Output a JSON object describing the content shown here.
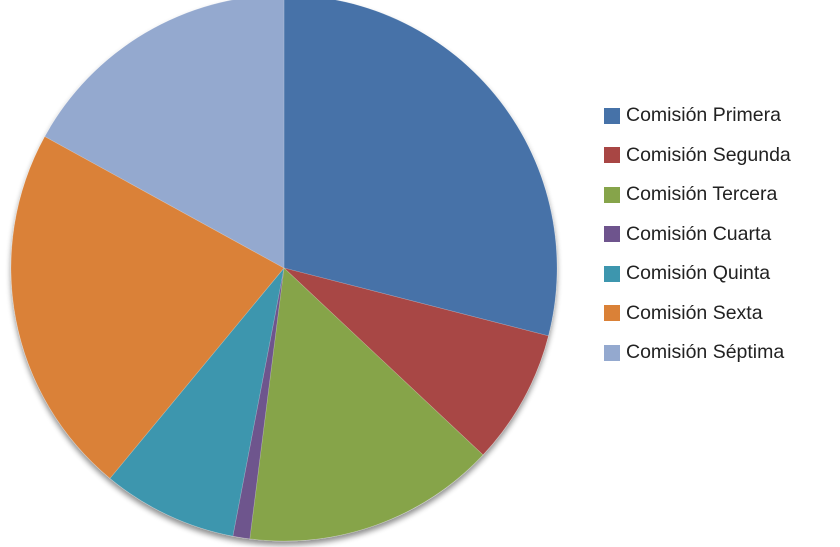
{
  "chart_data": {
    "type": "pie",
    "title": "",
    "legend_position": "right",
    "slices": [
      {
        "label": "Comisión Primera",
        "value": 29,
        "color": "#4672A8"
      },
      {
        "label": "Comisión Segunda",
        "value": 8,
        "color": "#A84644"
      },
      {
        "label": "Comisión Tercera",
        "value": 15,
        "color": "#86A44A"
      },
      {
        "label": "Comisión Cuarta",
        "value": 1,
        "color": "#6E548D"
      },
      {
        "label": "Comisión Quinta",
        "value": 8,
        "color": "#3D96AE"
      },
      {
        "label": "Comisión Sexta",
        "value": 22,
        "color": "#DA8137"
      },
      {
        "label": "Comisión Séptima",
        "value": 17,
        "color": "#94A9CF"
      }
    ]
  }
}
